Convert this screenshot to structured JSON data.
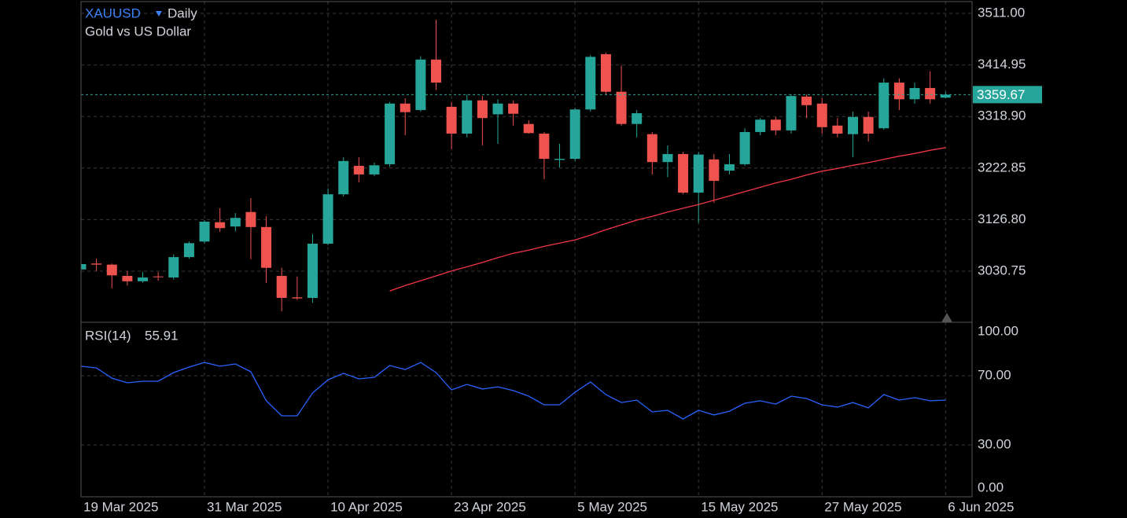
{
  "header": {
    "symbol": "XAUUSD",
    "interval": "Daily",
    "description": "Gold vs US Dollar"
  },
  "chart_data": {
    "type": "candlestick",
    "categories": [
      "19 Mar 2025",
      null,
      null,
      null,
      null,
      null,
      null,
      null,
      "31 Mar 2025",
      null,
      null,
      null,
      null,
      null,
      null,
      null,
      "10 Apr 2025",
      null,
      null,
      null,
      null,
      null,
      null,
      null,
      "23 Apr 2025",
      null,
      null,
      null,
      null,
      null,
      null,
      null,
      "5 May 2025",
      null,
      null,
      null,
      null,
      null,
      null,
      null,
      "15 May 2025",
      null,
      null,
      null,
      null,
      null,
      null,
      null,
      "27 May 2025",
      null,
      null,
      null,
      null,
      null,
      null,
      null,
      "6 Jun 2025"
    ],
    "open": [
      3034,
      3045,
      3043,
      3022,
      3012,
      3021,
      3019,
      3057,
      3086,
      3122,
      3114,
      3141,
      3113,
      3022,
      2982,
      2981,
      3082,
      3174,
      3227,
      3211,
      3230,
      3343,
      3331,
      3425,
      3337,
      3287,
      3349,
      3323,
      3343,
      3305,
      3287,
      3238,
      3240,
      3332,
      3435,
      3365,
      3305,
      3286,
      3234,
      3249,
      3177,
      3239,
      3218,
      3230,
      3290,
      3313,
      3293,
      3356,
      3343,
      3302,
      3286,
      3318,
      3297,
      3382,
      3351,
      3372,
      3354
    ],
    "high": [
      3046,
      3054,
      3045,
      3031,
      3029,
      3029,
      3062,
      3086,
      3126,
      3148,
      3139,
      3167,
      3133,
      3037,
      3021,
      3100,
      3185,
      3243,
      3243,
      3233,
      3346,
      3353,
      3431,
      3499,
      3346,
      3360,
      3357,
      3351,
      3349,
      3312,
      3290,
      3268,
      3335,
      3433,
      3438,
      3414,
      3331,
      3290,
      3265,
      3253,
      3253,
      3249,
      3249,
      3297,
      3316,
      3318,
      3360,
      3360,
      3353,
      3316,
      3328,
      3328,
      3390,
      3390,
      3382,
      3403,
      3365
    ],
    "low": [
      3032,
      3031,
      2999,
      3004,
      3009,
      3013,
      3015,
      3054,
      3082,
      3104,
      3105,
      3053,
      3009,
      2956,
      2977,
      2972,
      3079,
      3170,
      3196,
      3208,
      3225,
      3284,
      3328,
      3368,
      3258,
      3280,
      3265,
      3268,
      3302,
      3287,
      3202,
      3224,
      3236,
      3328,
      3360,
      3302,
      3280,
      3211,
      3206,
      3174,
      3121,
      3158,
      3211,
      3227,
      3284,
      3284,
      3287,
      3316,
      3287,
      3280,
      3243,
      3272,
      3294,
      3331,
      3343,
      3343,
      3353
    ],
    "close": [
      3044,
      3043,
      3023,
      3012,
      3019,
      3020,
      3057,
      3083,
      3123,
      3111,
      3130,
      3113,
      3037,
      2981,
      2980,
      3082,
      3174,
      3236,
      3211,
      3228,
      3343,
      3327,
      3425,
      3382,
      3287,
      3349,
      3316,
      3343,
      3324,
      3288,
      3240,
      3240,
      3332,
      3430,
      3365,
      3305,
      3325,
      3234,
      3249,
      3177,
      3248,
      3199,
      3230,
      3290,
      3313,
      3293,
      3357,
      3340,
      3299,
      3287,
      3318,
      3287,
      3382,
      3351,
      3372,
      3351,
      3359.67
    ],
    "up_color": "#26a69a",
    "down_color": "#ef5350",
    "ylim": [
      2935.6,
      3535.9
    ],
    "yticks": [
      {
        "value": 3030.75,
        "label": "3030.75"
      },
      {
        "value": 3126.8,
        "label": "3126.80"
      },
      {
        "value": 3222.85,
        "label": "3222.85"
      },
      {
        "value": 3318.9,
        "label": "3318.90"
      },
      {
        "value": 3414.95,
        "label": "3414.95"
      },
      {
        "value": 3511,
        "label": "3511.00"
      }
    ],
    "grid": true,
    "last_price_color": "#26a69a",
    "ma": {
      "color": "#f23645",
      "values": [
        null,
        null,
        null,
        null,
        null,
        null,
        null,
        null,
        null,
        null,
        null,
        null,
        null,
        null,
        null,
        null,
        null,
        null,
        null,
        null,
        2994,
        3004,
        3013,
        3022,
        3031,
        3039,
        3047,
        3056,
        3064,
        3070,
        3077,
        3083,
        3089,
        3098,
        3108,
        3117,
        3126,
        3133,
        3141,
        3148,
        3155,
        3163,
        3171,
        3179,
        3187,
        3195,
        3202,
        3210,
        3217,
        3222,
        3228,
        3233,
        3239,
        3245,
        3250,
        3256,
        3261
      ]
    },
    "rsi": {
      "title": "RSI(14)",
      "color": "#2962ff",
      "values": [
        75.5,
        74.5,
        68.6,
        65.9,
        66.8,
        66.8,
        71.8,
        75,
        77.7,
        75.5,
        76.8,
        72.3,
        55.5,
        46.8,
        46.8,
        60,
        67.7,
        71.4,
        68.2,
        69.1,
        75.9,
        73.6,
        77.7,
        71.8,
        61.8,
        65,
        62.3,
        63.6,
        61.4,
        58.2,
        53.2,
        53.2,
        60.5,
        66.4,
        59.1,
        54.5,
        55.9,
        49.1,
        50,
        45,
        50,
        47.3,
        49.5,
        54.1,
        55.5,
        53.6,
        58.2,
        56.8,
        53.2,
        51.8,
        54.5,
        51.4,
        59.1,
        55.9,
        57.3,
        55.5,
        55.91
      ],
      "ylim": [
        0,
        100
      ],
      "yticks": [
        {
          "value": 0,
          "label": "0.00"
        },
        {
          "value": 30,
          "label": "30.00"
        },
        {
          "value": 70,
          "label": "70.00"
        },
        {
          "value": 100,
          "label": "100.00"
        }
      ]
    }
  }
}
